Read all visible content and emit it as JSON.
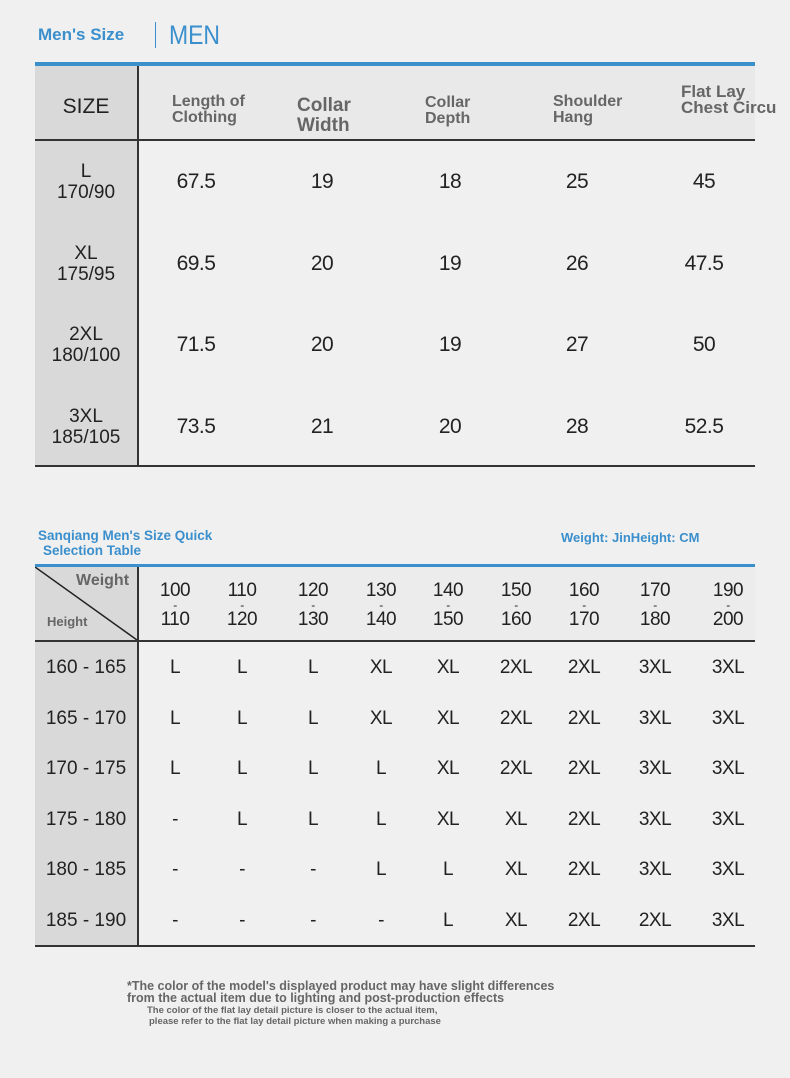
{
  "header": {
    "title": "Men's Size",
    "subtitle": "MEN"
  },
  "size_table": {
    "headers": [
      "SIZE",
      "Length of Clothing",
      "Collar Width",
      "Collar Depth",
      "Shoulder Hang",
      "Flat Lay Chest Circu"
    ],
    "rows": [
      {
        "size": "L",
        "body": "170/90",
        "values": [
          "67.5",
          "19",
          "18",
          "25",
          "45"
        ]
      },
      {
        "size": "XL",
        "body": "175/95",
        "values": [
          "69.5",
          "20",
          "19",
          "26",
          "47.5"
        ]
      },
      {
        "size": "2XL",
        "body": "180/100",
        "values": [
          "71.5",
          "20",
          "19",
          "27",
          "50"
        ]
      },
      {
        "size": "3XL",
        "body": "185/105",
        "values": [
          "73.5",
          "21",
          "20",
          "28",
          "52.5"
        ]
      }
    ]
  },
  "quick_table": {
    "title_line1": "Sanqiang Men's Size Quick",
    "title_line2": "Selection Table",
    "units": "Weight: JinHeight: CM",
    "corner_weight": "Weight",
    "corner_height": "Height",
    "weight_ranges": [
      [
        "100",
        "110"
      ],
      [
        "110",
        "120"
      ],
      [
        "120",
        "130"
      ],
      [
        "130",
        "140"
      ],
      [
        "140",
        "150"
      ],
      [
        "150",
        "160"
      ],
      [
        "160",
        "170"
      ],
      [
        "170",
        "180"
      ],
      [
        "190",
        "200"
      ]
    ],
    "rows": [
      {
        "height": "160 - 165",
        "sizes": [
          "L",
          "L",
          "L",
          "XL",
          "XL",
          "2XL",
          "2XL",
          "3XL",
          "3XL"
        ]
      },
      {
        "height": "165 - 170",
        "sizes": [
          "L",
          "L",
          "L",
          "XL",
          "XL",
          "2XL",
          "2XL",
          "3XL",
          "3XL"
        ]
      },
      {
        "height": "170 - 175",
        "sizes": [
          "L",
          "L",
          "L",
          "L",
          "XL",
          "2XL",
          "2XL",
          "3XL",
          "3XL"
        ]
      },
      {
        "height": "175 - 180",
        "sizes": [
          "-",
          "L",
          "L",
          "L",
          "XL",
          "XL",
          "2XL",
          "3XL",
          "3XL"
        ]
      },
      {
        "height": "180 - 185",
        "sizes": [
          "-",
          "-",
          "-",
          "L",
          "L",
          "XL",
          "2XL",
          "3XL",
          "3XL"
        ]
      },
      {
        "height": "185 - 190",
        "sizes": [
          "-",
          "-",
          "-",
          "-",
          "L",
          "XL",
          "2XL",
          "2XL",
          "3XL"
        ]
      }
    ]
  },
  "notes": {
    "line1": "*The color of the model's displayed product may have slight differences",
    "line2": " from the actual item due to lighting and post-production effects",
    "line3": "The color of the flat lay detail picture is closer to the actual item,",
    "line4": "please refer to the flat lay detail picture when making a purchase"
  }
}
